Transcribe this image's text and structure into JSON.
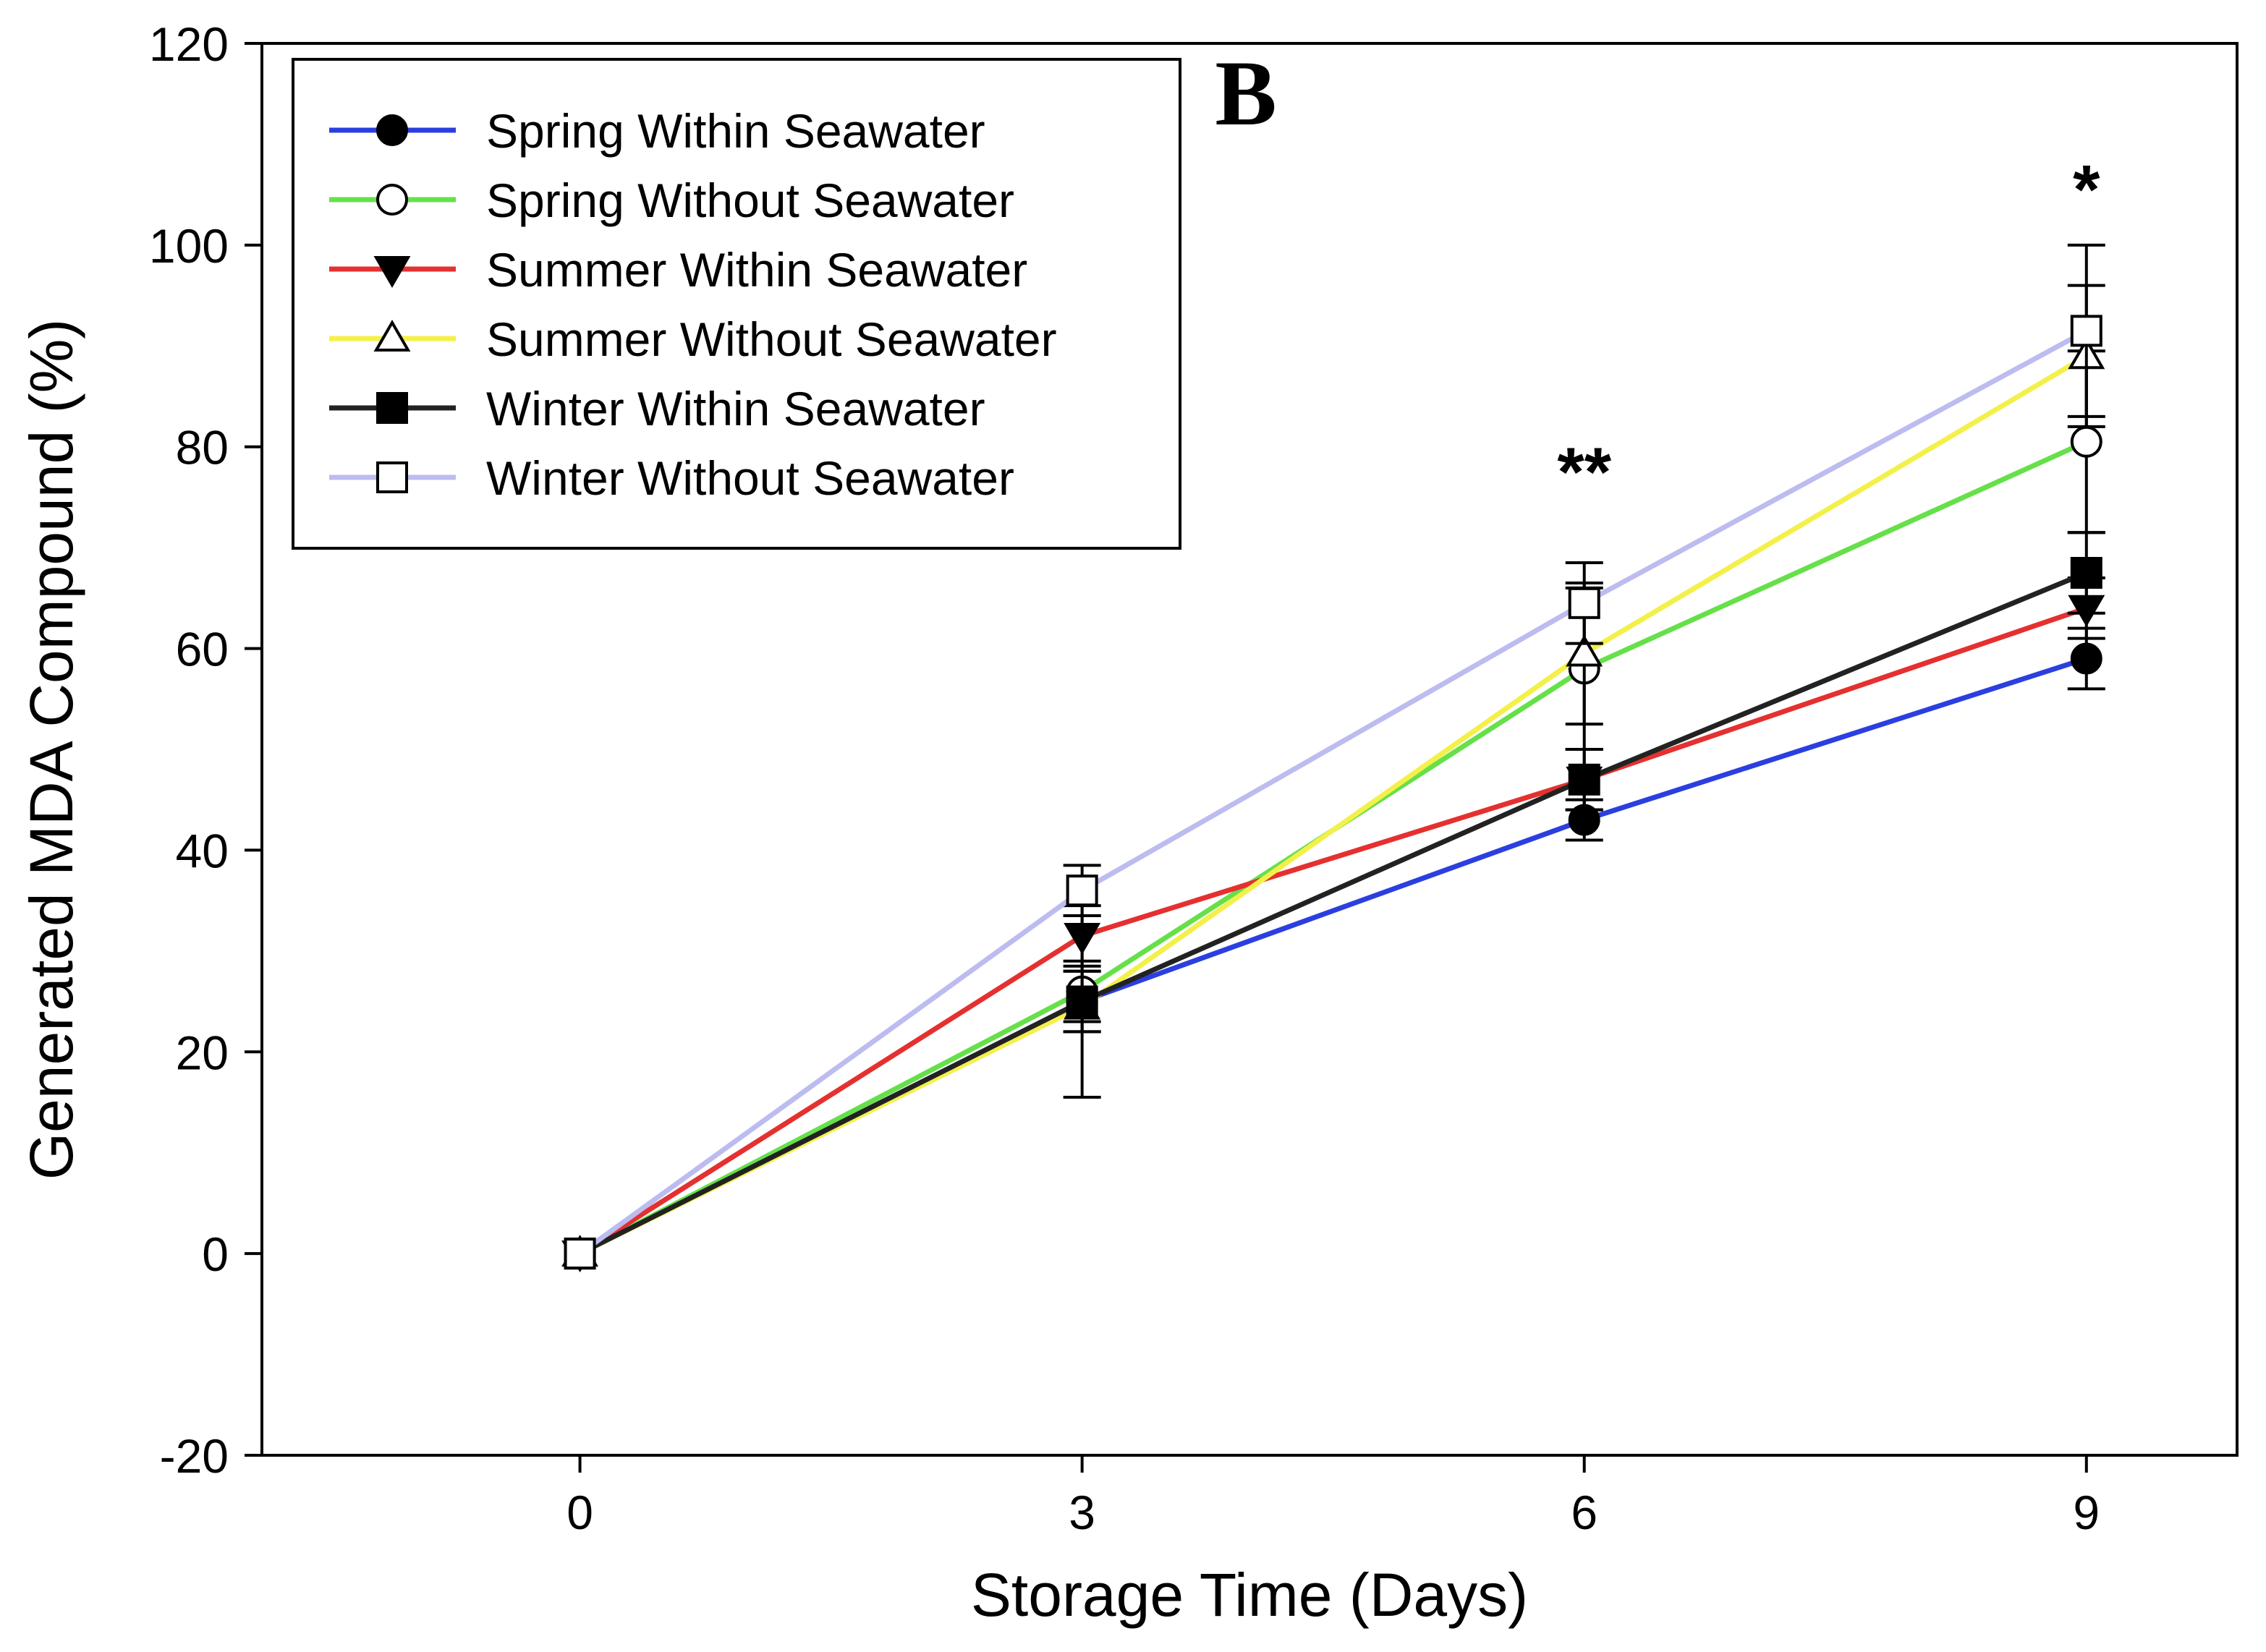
{
  "chart_data": {
    "type": "line",
    "title": "",
    "panel_label": "B",
    "xlabel": "Storage Time (Days)",
    "ylabel": "Generated MDA Compound (%)",
    "x": [
      0,
      3,
      6,
      9
    ],
    "xticks": [
      "0",
      "3",
      "6",
      "9"
    ],
    "yticks": [
      "-20",
      "0",
      "20",
      "40",
      "60",
      "80",
      "100",
      "120"
    ],
    "xlim": [
      -1.9,
      9.9
    ],
    "ylim": [
      -20,
      120
    ],
    "legend_position": "top-left",
    "series": [
      {
        "name": "Spring Within Seawater",
        "color": "#2b3fe0",
        "marker": "circle",
        "filled": true,
        "values": [
          0,
          25,
          43,
          59
        ],
        "errors": [
          0,
          3,
          2,
          3
        ]
      },
      {
        "name": "Spring Without Seawater",
        "color": "#66e04a",
        "marker": "circle",
        "filled": false,
        "values": [
          0,
          26,
          58,
          80.5
        ],
        "errors": [
          0,
          3,
          8,
          9
        ]
      },
      {
        "name": "Summer Within Seawater",
        "color": "#e53030",
        "marker": "triangle-down",
        "filled": true,
        "values": [
          0,
          31.5,
          47,
          64
        ],
        "errors": [
          0,
          3,
          3,
          3
        ]
      },
      {
        "name": "Summer Without Seawater",
        "color": "#f3f04a",
        "marker": "triangle-up",
        "filled": false,
        "values": [
          0,
          24.5,
          59.5,
          89
        ],
        "errors": [
          0,
          9,
          7,
          7
        ]
      },
      {
        "name": "Winter Within Seawater",
        "color": "#222222",
        "marker": "square",
        "filled": true,
        "values": [
          0,
          25,
          47,
          67.5
        ],
        "errors": [
          0,
          3,
          3,
          4
        ]
      },
      {
        "name": "Winter Without Seawater",
        "color": "#bcbcf0",
        "marker": "square",
        "filled": false,
        "values": [
          0,
          36,
          64.5,
          91.5
        ],
        "errors": [
          0,
          2.5,
          4,
          8.5
        ]
      }
    ],
    "annotations": [
      {
        "text": "**",
        "x": 6,
        "y": 78
      },
      {
        "text": "*",
        "x": 9,
        "y": 106
      }
    ]
  }
}
